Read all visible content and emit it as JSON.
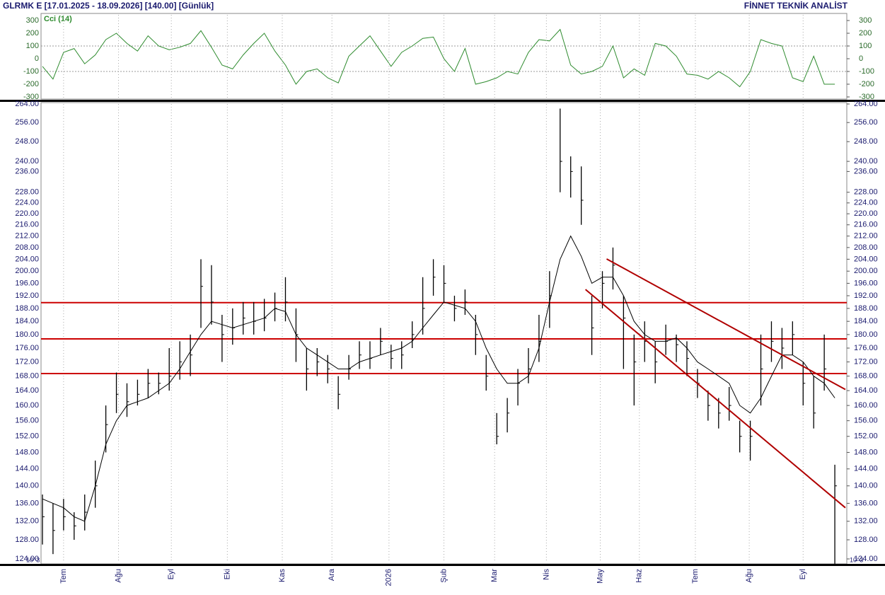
{
  "header": {
    "title": "GLRMK E  [17.01.2025 - 18.09.2026]  [140.00]  [Günlük]",
    "source": "FİNNET TEKNİK ANALİST"
  },
  "chart_data": [
    {
      "type": "line",
      "ylim": [
        -300,
        300
      ],
      "yticks": [
        300,
        200,
        100,
        0,
        -100,
        -200,
        -300
      ],
      "reference_lines": [
        100,
        -100
      ],
      "xlim": [
        0,
        76
      ],
      "series": [
        {
          "name": "Cci (14)",
          "color": "#2e8b2e",
          "values": [
            -60,
            -160,
            50,
            80,
            -40,
            30,
            150,
            200,
            120,
            60,
            180,
            100,
            70,
            90,
            120,
            220,
            90,
            -50,
            -80,
            30,
            120,
            200,
            60,
            -50,
            -200,
            -100,
            -80,
            -150,
            -190,
            20,
            100,
            180,
            60,
            -60,
            50,
            100,
            160,
            170,
            0,
            -100,
            80,
            -200,
            -180,
            -150,
            -100,
            -120,
            50,
            150,
            140,
            230,
            -50,
            -120,
            -100,
            -60,
            100,
            -150,
            -80,
            -130,
            120,
            100,
            20,
            -120,
            -130,
            -160,
            -100,
            -150,
            -220,
            -100,
            150,
            120,
            100,
            -150,
            -180,
            20,
            -200,
            -200
          ]
        }
      ]
    },
    {
      "type": "ohlc",
      "log": true,
      "ylim": [
        124,
        264
      ],
      "xlim": [
        0,
        76
      ],
      "color": "#000000",
      "multiplier_label": "10^3",
      "yticks": [
        {
          "value": 264,
          "label": "264.00"
        },
        {
          "value": 256,
          "label": "256.00"
        },
        {
          "value": 248,
          "label": "248.00"
        },
        {
          "value": 240,
          "label": "240.00"
        },
        {
          "value": 236,
          "label": "236.00"
        },
        {
          "value": 228,
          "label": "228.00"
        },
        {
          "value": 224,
          "label": "224.00"
        },
        {
          "value": 220,
          "label": "220.00"
        },
        {
          "value": 216,
          "label": "216.00"
        },
        {
          "value": 212,
          "label": "212.00"
        },
        {
          "value": 208,
          "label": "208.00"
        },
        {
          "value": 204,
          "label": "204.00"
        },
        {
          "value": 200,
          "label": "200.00"
        },
        {
          "value": 196,
          "label": "196.00"
        },
        {
          "value": 192,
          "label": "192.00"
        },
        {
          "value": 188,
          "label": "188.00"
        },
        {
          "value": 184,
          "label": "184.00"
        },
        {
          "value": 180,
          "label": "180.00"
        },
        {
          "value": 176,
          "label": "176.00"
        },
        {
          "value": 172,
          "label": "172.00"
        },
        {
          "value": 168,
          "label": "168.00"
        },
        {
          "value": 164,
          "label": "164.00"
        },
        {
          "value": 160,
          "label": "160.00"
        },
        {
          "value": 156,
          "label": "156.00"
        },
        {
          "value": 152,
          "label": "152.00"
        },
        {
          "value": 148,
          "label": "148.00"
        },
        {
          "value": 144,
          "label": "144.00"
        },
        {
          "value": 140,
          "label": "140.00"
        },
        {
          "value": 136,
          "label": "136.00"
        },
        {
          "value": 132,
          "label": "132.00"
        },
        {
          "value": 128,
          "label": "128.00"
        },
        {
          "value": 124,
          "label": "124.00"
        }
      ],
      "xticks": [
        {
          "value": 2,
          "label": "Tem"
        },
        {
          "value": 7.2,
          "label": "Ağu"
        },
        {
          "value": 12.2,
          "label": "Eyl"
        },
        {
          "value": 17.5,
          "label": "Eki"
        },
        {
          "value": 22.7,
          "label": "Kas"
        },
        {
          "value": 27.4,
          "label": "Ara"
        },
        {
          "value": 32.8,
          "label": "2026"
        },
        {
          "value": 38,
          "label": "Şub"
        },
        {
          "value": 42.8,
          "label": "Mar"
        },
        {
          "value": 47.7,
          "label": "Nis"
        },
        {
          "value": 52.8,
          "label": "May"
        },
        {
          "value": 56.5,
          "label": "Haz"
        },
        {
          "value": 61.8,
          "label": "Tem"
        },
        {
          "value": 66.9,
          "label": "Ağu"
        },
        {
          "value": 72,
          "label": "Eyl"
        }
      ],
      "high": [
        138,
        136,
        137,
        134,
        138,
        146,
        160,
        169,
        166,
        167,
        170,
        169,
        176,
        178,
        180,
        204,
        202,
        186,
        188,
        190,
        190,
        191,
        193,
        198,
        188,
        176,
        176,
        174,
        168,
        174,
        178,
        178,
        182,
        177,
        178,
        184,
        198,
        204,
        202,
        192,
        194,
        186,
        174,
        158,
        162,
        170,
        176,
        186,
        200,
        262,
        242,
        238,
        192,
        200,
        208,
        192,
        180,
        184,
        178,
        183,
        180,
        178,
        170,
        164,
        162,
        165,
        156,
        156,
        180,
        184,
        182,
        184,
        172,
        168,
        180,
        145
      ],
      "low": [
        127,
        125,
        130,
        128,
        130,
        135,
        148,
        158,
        157,
        160,
        162,
        163,
        164,
        167,
        168,
        182,
        183,
        172,
        177,
        180,
        180,
        181,
        184,
        184,
        172,
        164,
        168,
        166,
        159,
        167,
        170,
        170,
        174,
        170,
        170,
        176,
        180,
        192,
        190,
        184,
        186,
        174,
        164,
        150,
        153,
        160,
        166,
        172,
        182,
        228,
        226,
        216,
        174,
        188,
        194,
        170,
        160,
        172,
        166,
        174,
        172,
        168,
        162,
        156,
        154,
        156,
        148,
        146,
        160,
        172,
        170,
        174,
        160,
        154,
        164,
        123
      ],
      "close": [
        133,
        130,
        133,
        131,
        134,
        140,
        155,
        163,
        161,
        163,
        166,
        166,
        168,
        172,
        174,
        195,
        190,
        180,
        182,
        185,
        184,
        185,
        188,
        190,
        180,
        170,
        172,
        170,
        163,
        170,
        174,
        173,
        178,
        173,
        174,
        180,
        188,
        198,
        196,
        188,
        190,
        180,
        168,
        152,
        158,
        166,
        170,
        178,
        192,
        240,
        236,
        225,
        182,
        196,
        202,
        185,
        172,
        178,
        172,
        178,
        177,
        173,
        166,
        160,
        158,
        160,
        152,
        152,
        170,
        178,
        176,
        180,
        166,
        158,
        170,
        140
      ],
      "ma": {
        "color": "#000000",
        "values": [
          137,
          136,
          135,
          133,
          132,
          140,
          150,
          156,
          160,
          161,
          162,
          164,
          166,
          170,
          175,
          180,
          184,
          183,
          182,
          183,
          184,
          185,
          188,
          187,
          180,
          176,
          174,
          172,
          170,
          170,
          172,
          173,
          174,
          175,
          176,
          178,
          182,
          186,
          190,
          189,
          188,
          184,
          176,
          170,
          166,
          166,
          168,
          176,
          190,
          204,
          212,
          205,
          196,
          198,
          198,
          192,
          184,
          180,
          178,
          178,
          179,
          176,
          172,
          170,
          168,
          166,
          160,
          158,
          162,
          168,
          174,
          174,
          172,
          168,
          166,
          162
        ]
      },
      "hlines": {
        "color": "#cc0000",
        "values": [
          189.8,
          178.7,
          168.7
        ]
      },
      "trendlines": {
        "color": "#b00000",
        "lines": [
          {
            "x": [
              53.4,
              76
            ],
            "values": [
              204.1,
              164.3
            ]
          },
          {
            "x": [
              51.4,
              76
            ],
            "values": [
              194.0,
              135.0
            ]
          }
        ]
      }
    }
  ]
}
